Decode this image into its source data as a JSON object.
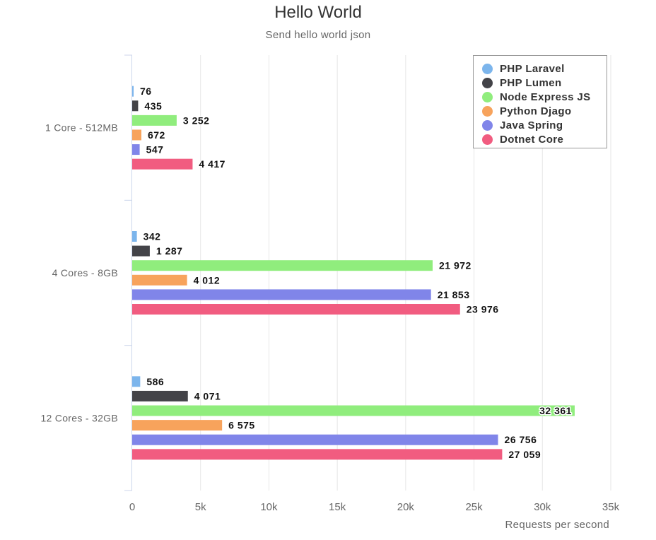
{
  "chart_data": {
    "type": "bar",
    "orientation": "horizontal",
    "title": "Hello World",
    "subtitle": "Send hello world json",
    "xlabel": "Requests per second",
    "ylabel": "",
    "categories": [
      "1 Core - 512MB",
      "4 Cores - 8GB",
      "12 Cores - 32GB"
    ],
    "xlim": [
      0,
      35000
    ],
    "xticks": [
      0,
      5000,
      10000,
      15000,
      20000,
      25000,
      30000,
      35000
    ],
    "xtick_labels": [
      "0",
      "5k",
      "10k",
      "15k",
      "20k",
      "25k",
      "30k",
      "35k"
    ],
    "grid": true,
    "legend_position": "top-right",
    "series": [
      {
        "name": "PHP Laravel",
        "color": "#7cb5ec",
        "values": [
          76,
          342,
          586
        ],
        "labels": [
          "76",
          "342",
          "586"
        ]
      },
      {
        "name": "PHP Lumen",
        "color": "#434348",
        "values": [
          435,
          1287,
          4071
        ],
        "labels": [
          "435",
          "1 287",
          "4 071"
        ]
      },
      {
        "name": "Node Express JS",
        "color": "#90ed7d",
        "values": [
          3252,
          21972,
          32361
        ],
        "labels": [
          "3 252",
          "21 972",
          "32 361"
        ]
      },
      {
        "name": "Python Djago",
        "color": "#f7a35c",
        "values": [
          672,
          4012,
          6575
        ],
        "labels": [
          "672",
          "4 012",
          "6 575"
        ]
      },
      {
        "name": "Java Spring",
        "color": "#8085e9",
        "values": [
          547,
          21853,
          26756
        ],
        "labels": [
          "547",
          "21 853",
          "26 756"
        ]
      },
      {
        "name": "Dotnet Core",
        "color": "#f15c80",
        "values": [
          4417,
          23976,
          27059
        ],
        "labels": [
          "4 417",
          "23 976",
          "27 059"
        ]
      }
    ]
  }
}
